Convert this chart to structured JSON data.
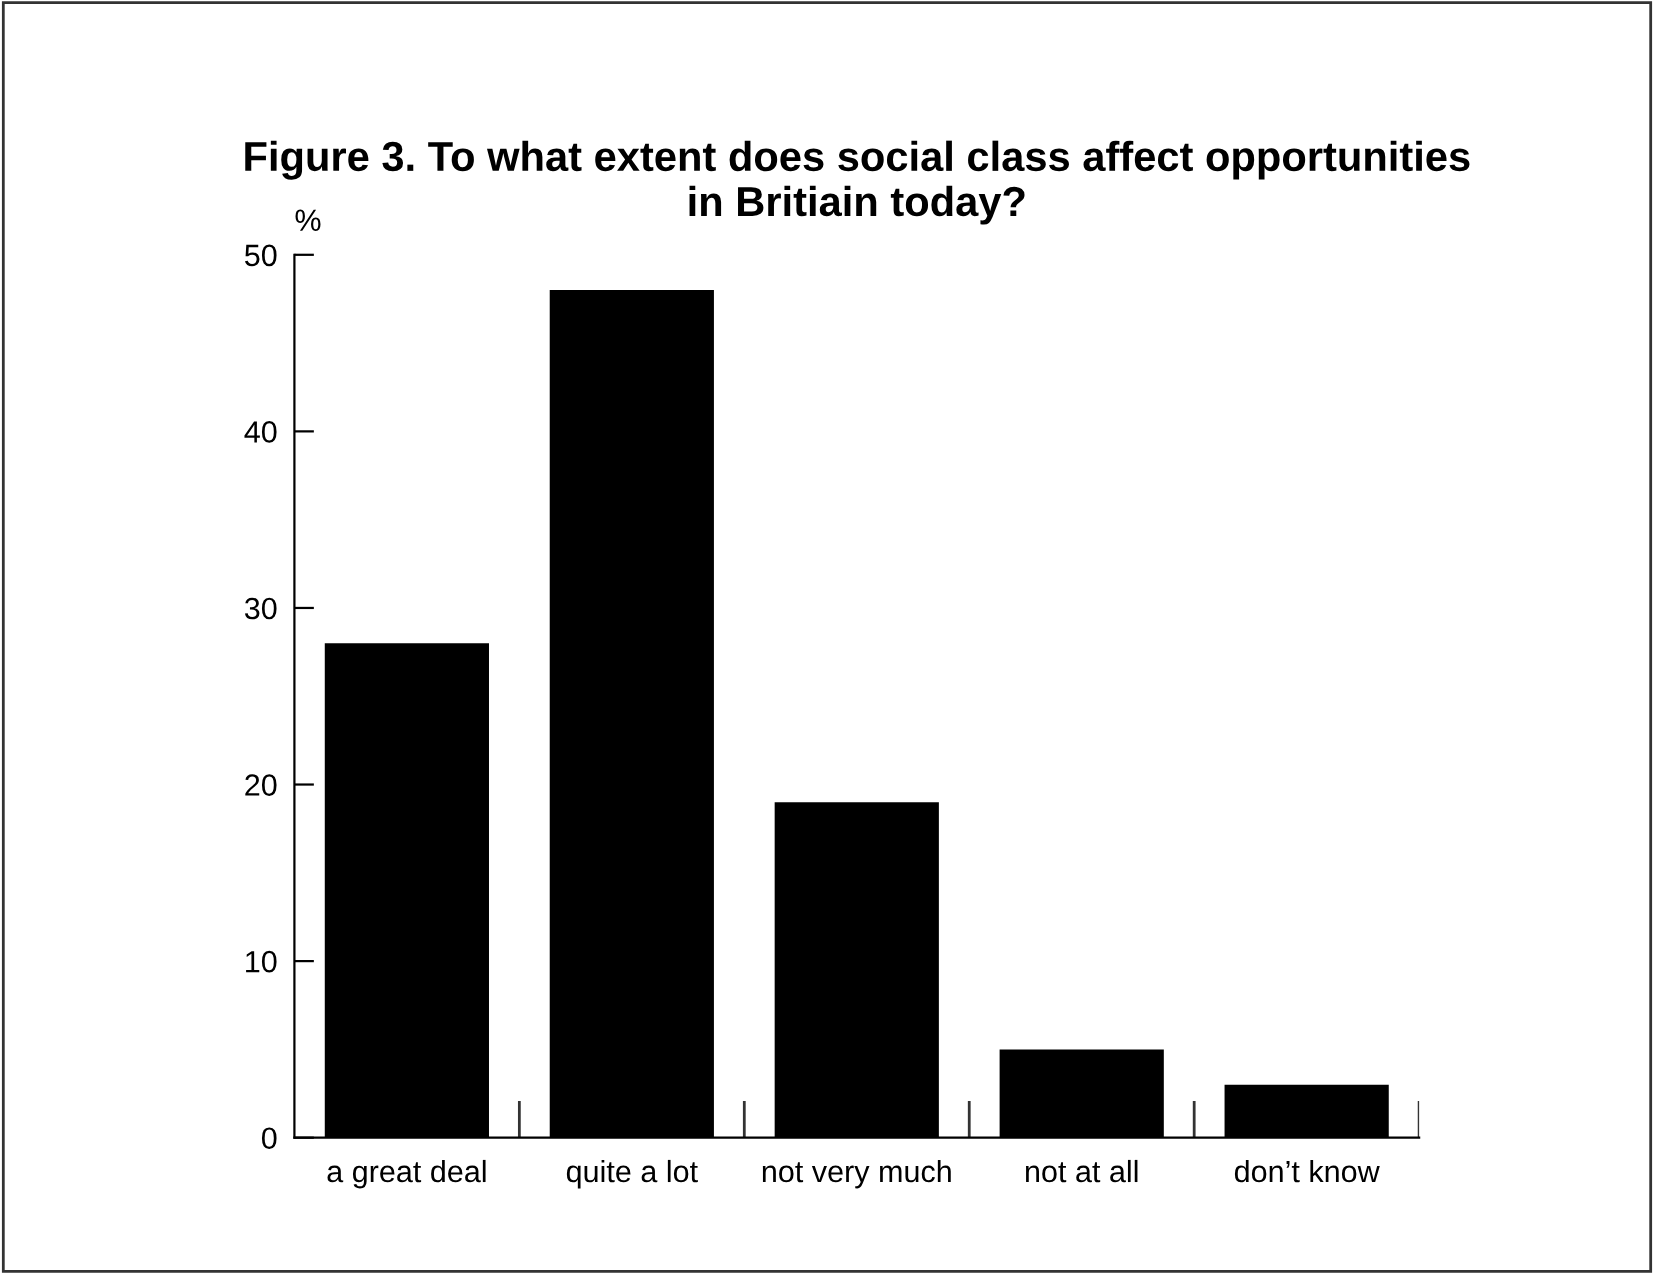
{
  "chart_data": {
    "type": "bar",
    "title": "Figure 3. To what extent does social class affect opportunities\nin Britiain today?",
    "ylabel": "%",
    "categories": [
      "a great deal",
      "quite a lot",
      "not very much",
      "not at all",
      "don’t know"
    ],
    "values": [
      28,
      48,
      19,
      5,
      3
    ],
    "color": "#000000",
    "ylim": [
      0,
      50
    ],
    "yticks": [
      0,
      10,
      20,
      30,
      40,
      50
    ],
    "grid": false,
    "legend": false
  }
}
